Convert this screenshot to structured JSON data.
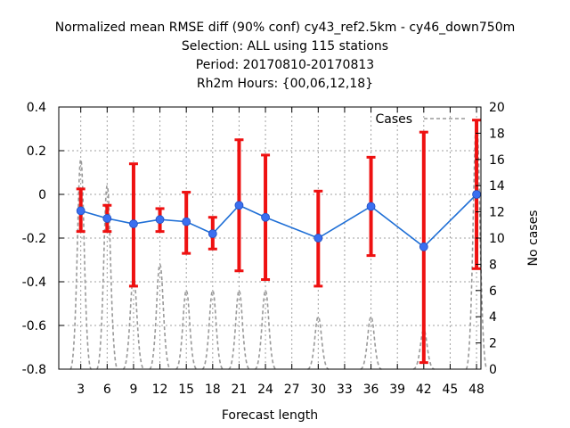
{
  "chart_data": {
    "type": "line",
    "title_lines": [
      "Normalized mean RMSE diff (90% conf) cy43_ref2.5km - cy46_down750m",
      "Selection: ALL using   115 stations",
      "Period: 20170810-20170813",
      "Rh2m   Hours: {00,06,12,18}"
    ],
    "xlabel": "Forecast length",
    "ylabel_left": "",
    "ylabel_right": "No cases",
    "x_ticks": [
      3,
      6,
      9,
      12,
      15,
      18,
      21,
      24,
      27,
      30,
      33,
      36,
      39,
      42,
      45,
      48
    ],
    "xlim": [
      0.5,
      48.5
    ],
    "ylim_left": [
      -0.8,
      0.4
    ],
    "y_ticks_left": [
      "-0.8",
      "-0.6",
      "-0.4",
      "-0.2",
      "0",
      "0.2",
      "0.4"
    ],
    "ylim_right": [
      0,
      20
    ],
    "y_ticks_right": [
      "0",
      "2",
      "4",
      "6",
      "8",
      "10",
      "12",
      "14",
      "16",
      "18",
      "20"
    ],
    "grid": true,
    "legend": {
      "position": "top-right",
      "entries": [
        "Cases"
      ]
    },
    "series": [
      {
        "name": "",
        "color": "#1f6fd6",
        "x": [
          3,
          6,
          9,
          12,
          15,
          18,
          21,
          24,
          30,
          36,
          42,
          48
        ],
        "y": [
          -0.075,
          -0.11,
          -0.135,
          -0.115,
          -0.125,
          -0.18,
          -0.05,
          -0.105,
          -0.2,
          -0.055,
          -0.24,
          0.0
        ]
      }
    ],
    "error_bars": {
      "color": "#ee1111",
      "x": [
        3,
        6,
        9,
        12,
        15,
        18,
        21,
        24,
        30,
        36,
        42,
        48
      ],
      "low": [
        -0.17,
        -0.17,
        -0.42,
        -0.17,
        -0.27,
        -0.25,
        -0.35,
        -0.39,
        -0.42,
        -0.28,
        -0.77,
        -0.34
      ],
      "high": [
        0.025,
        -0.05,
        0.14,
        -0.065,
        0.01,
        -0.105,
        0.25,
        0.18,
        0.015,
        0.17,
        0.285,
        0.34
      ]
    },
    "cases": {
      "name": "Cases",
      "color": "#999999",
      "axis": "right",
      "x": [
        3,
        6,
        9,
        12,
        15,
        18,
        21,
        24,
        30,
        36,
        42,
        48
      ],
      "y": [
        16,
        14,
        7,
        8,
        6,
        6,
        6,
        6,
        4,
        4,
        3,
        19
      ]
    }
  }
}
